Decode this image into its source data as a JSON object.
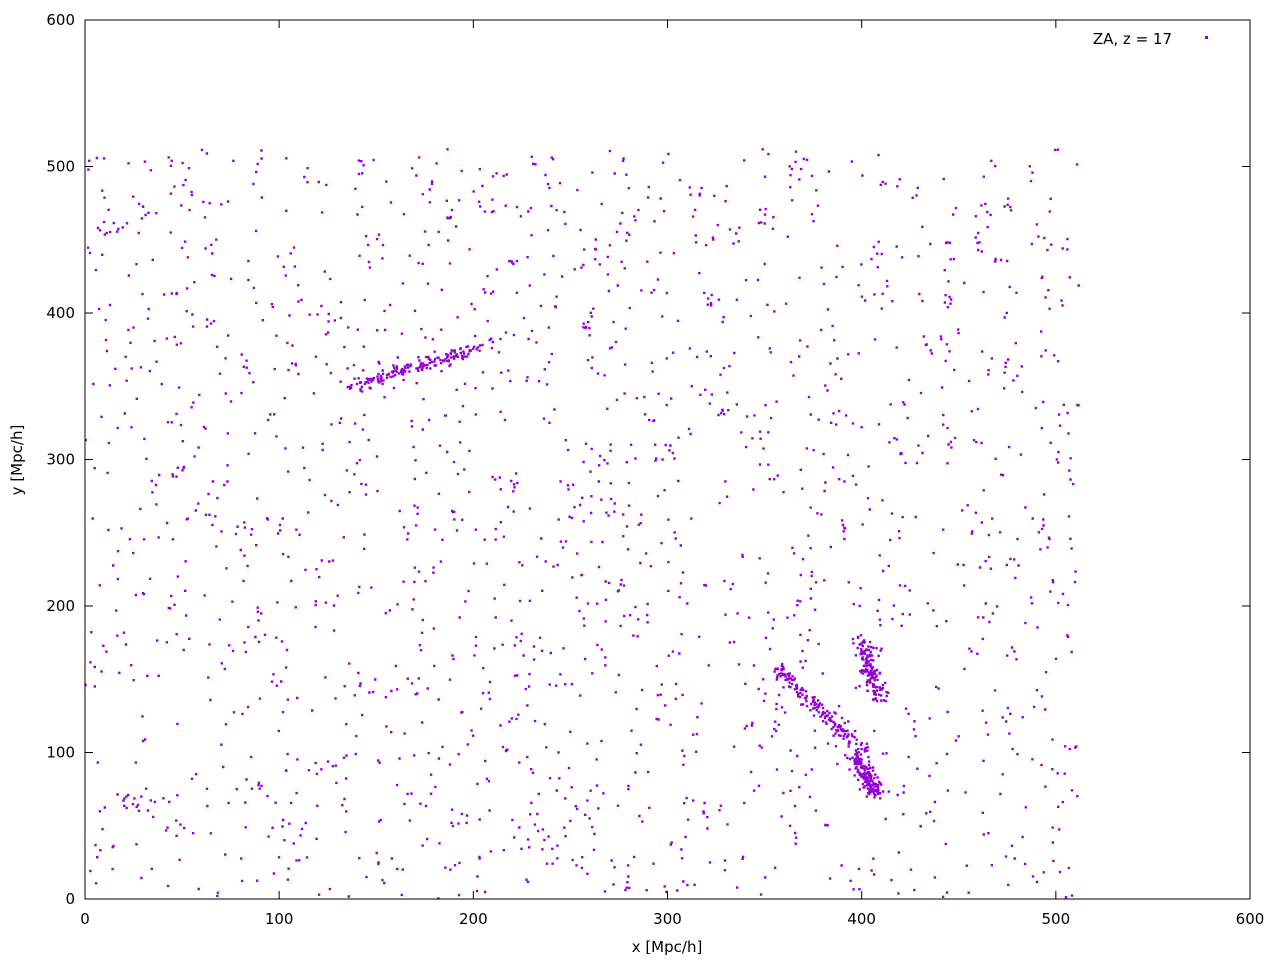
{
  "chart_data": {
    "type": "scatter",
    "title": "",
    "xlabel": "x [Mpc/h]",
    "ylabel": "y [Mpc/h]",
    "xlim": [
      0,
      600
    ],
    "ylim": [
      0,
      600
    ],
    "xticks": [
      0,
      100,
      200,
      300,
      400,
      500,
      600
    ],
    "yticks": [
      0,
      100,
      200,
      300,
      400,
      500,
      600
    ],
    "grid": false,
    "legend_position": "top-right",
    "series": [
      {
        "name": "ZA, z = 17",
        "color": "#9400d3",
        "marker": "square-dot",
        "domain_x": [
          0,
          512
        ],
        "domain_y": [
          0,
          512
        ],
        "point_count_approx": 16000,
        "description_note": "quasi-uniform particle distribution with filamentary clustering across box 0–512 Mpc/h"
      }
    ]
  }
}
